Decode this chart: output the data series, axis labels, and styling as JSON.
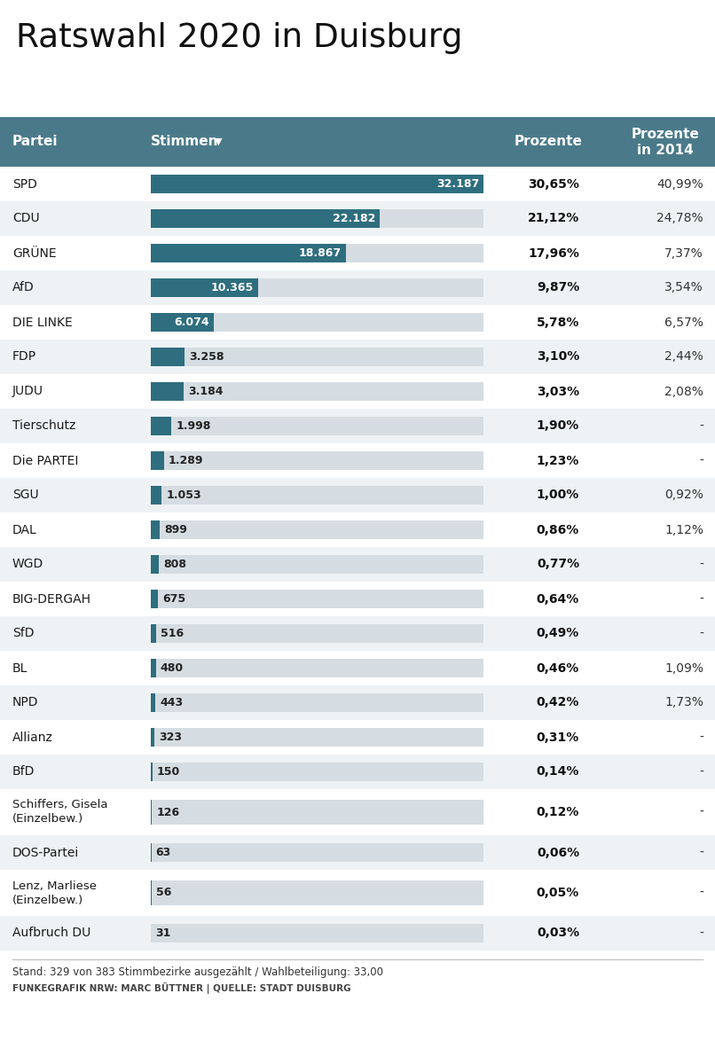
{
  "title": "Ratswahl 2020 in Duisburg",
  "header_bg": "#4a7a8a",
  "parties": [
    "SPD",
    "CDU",
    "GRÜNE",
    "AfD",
    "DIE LINKE",
    "FDP",
    "JUDU",
    "Tierschutz",
    "Die PARTEI",
    "SGU",
    "DAL",
    "WGD",
    "BIG-DERGAH",
    "SfD",
    "BL",
    "NPD",
    "Allianz",
    "BfD",
    "Schiffers, Gisela\n(Einzelbew.)",
    "DOS-Partei",
    "Lenz, Marliese\n(Einzelbew.)",
    "Aufbruch DU"
  ],
  "stimmen": [
    32187,
    22182,
    18867,
    10365,
    6074,
    3258,
    3184,
    1998,
    1289,
    1053,
    899,
    808,
    675,
    516,
    480,
    443,
    323,
    150,
    126,
    63,
    56,
    31
  ],
  "stimmen_labels": [
    "32.187",
    "22.182",
    "18.867",
    "10.365",
    "6.074",
    "3.258",
    "3.184",
    "1.998",
    "1.289",
    "1.053",
    "899",
    "808",
    "675",
    "516",
    "480",
    "443",
    "323",
    "150",
    "126",
    "63",
    "56",
    "31"
  ],
  "prozente": [
    "30,65%",
    "21,12%",
    "17,96%",
    "9,87%",
    "5,78%",
    "3,10%",
    "3,03%",
    "1,90%",
    "1,23%",
    "1,00%",
    "0,86%",
    "0,77%",
    "0,64%",
    "0,49%",
    "0,46%",
    "0,42%",
    "0,31%",
    "0,14%",
    "0,12%",
    "0,06%",
    "0,05%",
    "0,03%"
  ],
  "prozente_2014": [
    "40,99%",
    "24,78%",
    "7,37%",
    "3,54%",
    "6,57%",
    "2,44%",
    "2,08%",
    "-",
    "-",
    "0,92%",
    "1,12%",
    "-",
    "-",
    "-",
    "1,09%",
    "1,73%",
    "-",
    "-",
    "-",
    "-",
    "-",
    "-"
  ],
  "bar_color": "#2e6e7e",
  "bar_bg_color": "#d5dde2",
  "max_stimmen": 32187,
  "footer_text": "Stand: 329 von 383 Stimmbezirke ausgezählt / Wahlbeteiligung: 33,00",
  "source_text": "FUNKEGRAFIK NRW: MARC BÜTTNER | QUELLE: STADT DUISBURG",
  "row_bg_even": "#ffffff",
  "row_bg_odd": "#eef2f4"
}
